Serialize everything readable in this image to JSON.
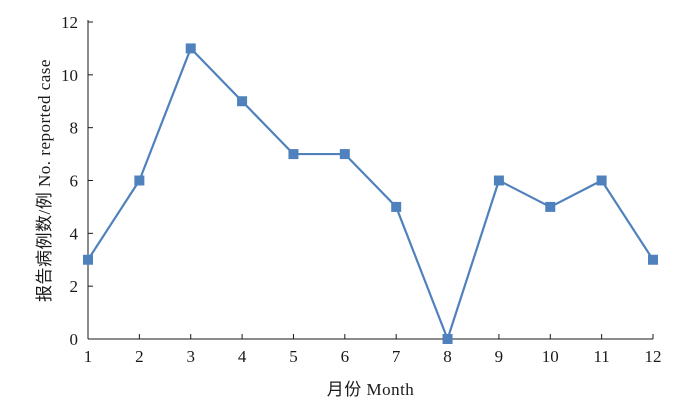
{
  "chart_data": {
    "type": "line",
    "x": [
      1,
      2,
      3,
      4,
      5,
      6,
      7,
      8,
      9,
      10,
      11,
      12
    ],
    "series": [
      {
        "values": [
          3,
          6,
          11,
          9,
          7,
          7,
          5,
          0,
          6,
          5,
          6,
          3
        ]
      }
    ],
    "xlabel": "月份 Month",
    "ylabel": "报告病例数/例 No. reported case",
    "xlim": [
      1,
      12
    ],
    "ylim": [
      0,
      12
    ],
    "yticks": [
      0,
      2,
      4,
      6,
      8,
      10,
      12
    ],
    "xticks": [
      1,
      2,
      3,
      4,
      5,
      6,
      7,
      8,
      9,
      10,
      11,
      12
    ],
    "grid": false,
    "series_color": "#4f81bd",
    "marker": "square"
  }
}
